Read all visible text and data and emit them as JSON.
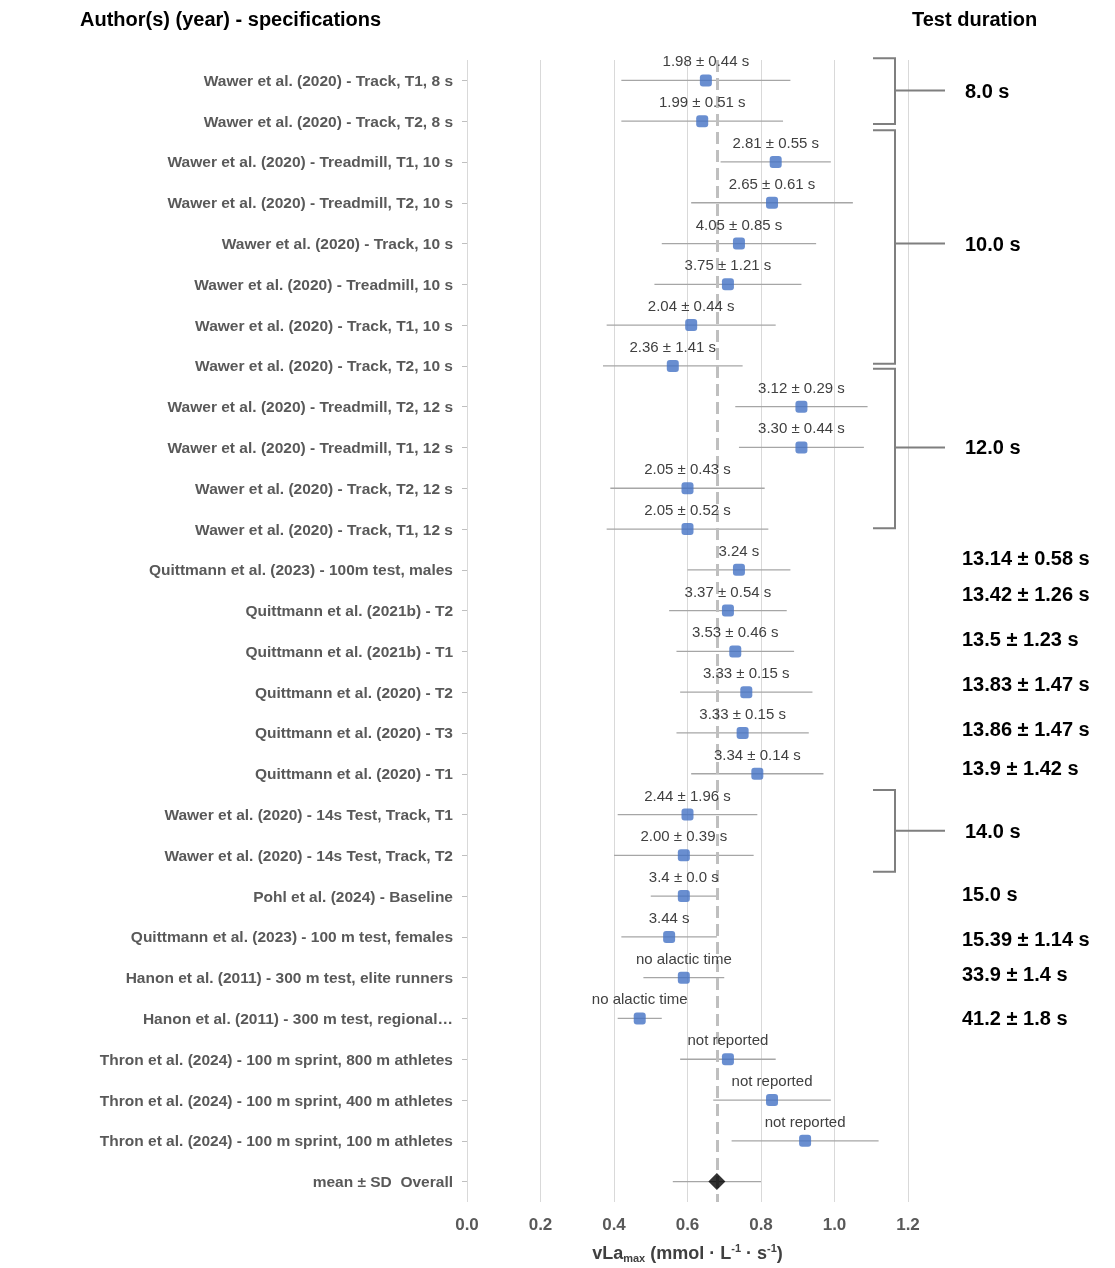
{
  "chart_data": {
    "type": "scatter",
    "orientation": "horizontal",
    "xlabel": "vLa$_{max}$ (mmol · L$^{-1}$ · s$^{-1}$)",
    "ylabel": "Author(s) (year) - specifications",
    "categories": [
      "Wawer et al. (2020) - Track, T1, 8 s",
      "Wawer et al. (2020) - Track, T2, 8 s",
      "Wawer et al. (2020) - Treadmill, T1, 10 s",
      "Wawer et al. (2020) - Treadmill, T2, 10 s",
      "Wawer et al. (2020) - Track, 10 s",
      "Wawer et al. (2020) - Treadmill, 10 s",
      "Wawer et al. (2020) - Track, T1, 10 s",
      "Wawer et al. (2020) - Track, T2, 10 s",
      "Wawer et al. (2020) - Treadmill, T2, 12 s",
      "Wawer et al. (2020) - Treadmill, T1, 12 s",
      "Wawer et al. (2020) - Track, T2, 12 s",
      "Wawer et al. (2020) - Track, T1, 12 s",
      "Quittmann et al. (2023) - 100m test, males",
      "Quittmann et al. (2021b) - T2",
      "Quittmann et al. (2021b) - T1",
      "Quittmann et al. (2020) - T2",
      "Quittmann et al. (2020) - T3",
      "Quittmann et al. (2020) - T1",
      "Wawer et al. (2020) - 14s Test, Track, T1",
      "Wawer et al. (2020) - 14s Test, Track, T2",
      "Pohl et al. (2024) - Baseline",
      "Quittmann et al. (2023) - 100 m test, females",
      "Hanon et al. (2011) - 300 m test, elite runners",
      "Hanon et al. (2011) - 300 m test, regional…",
      "Thron et al. (2024) - 100 m sprint, 800 m athletes",
      "Thron et al. (2024) - 100 m sprint, 400 m athletes",
      "Thron et al. (2024) - 100 m sprint, 100 m athletes",
      "mean ± SD  Overall"
    ],
    "series": [
      {
        "color": "#4472c4",
        "marker": "square",
        "values": [
          0.65,
          0.64,
          0.84,
          0.83,
          0.74,
          0.71,
          0.61,
          0.56,
          0.91,
          0.91,
          0.6,
          0.6,
          0.74,
          0.71,
          0.73,
          0.76,
          0.75,
          0.79,
          0.6,
          0.59,
          0.59,
          0.55,
          0.59,
          0.47,
          0.71,
          0.83,
          0.92,
          null
        ],
        "errors": [
          0.23,
          0.22,
          0.15,
          0.22,
          0.21,
          0.2,
          0.23,
          0.19,
          0.18,
          0.17,
          0.21,
          0.22,
          0.14,
          0.16,
          0.16,
          0.18,
          0.18,
          0.18,
          0.19,
          0.19,
          0.09,
          0.13,
          0.11,
          0.06,
          0.13,
          0.16,
          0.2,
          null
        ]
      },
      {
        "color": "#000000",
        "marker": "diamond",
        "values": [
          null,
          null,
          null,
          null,
          null,
          null,
          null,
          null,
          null,
          null,
          null,
          null,
          null,
          null,
          null,
          null,
          null,
          null,
          null,
          null,
          null,
          null,
          null,
          null,
          null,
          null,
          null,
          0.68
        ],
        "errors": [
          null,
          null,
          null,
          null,
          null,
          null,
          null,
          null,
          null,
          null,
          null,
          null,
          null,
          null,
          null,
          null,
          null,
          null,
          null,
          null,
          null,
          null,
          null,
          null,
          null,
          null,
          null,
          0.12
        ]
      }
    ],
    "xlim": [
      0,
      1.2
    ],
    "xticks": [
      {
        "value": 0,
        "label": "0.0"
      },
      0.2,
      0.4,
      0.6,
      0.8,
      {
        "value": 1,
        "label": "1.0"
      },
      1.2
    ],
    "grid": "x",
    "ref_lines": [
      {
        "axis": "x",
        "value": 0.68,
        "color": "#bfbfbf",
        "line_style": "dashed"
      }
    ],
    "annotations": [
      "Test duration",
      "8.0 s",
      "10.0 s",
      "12.0 s",
      "13.14 ± 0.58 s",
      "13.42 ± 1.26 s",
      "13.5 ± 1.23 s",
      "13.83 ± 1.47 s",
      "13.86 ± 1.47 s",
      "13.9 ± 1.42 s",
      "14.0 s",
      "15.0 s",
      "15.39 ± 1.14 s",
      "33.9 ± 1.4 s",
      "41.2 ± 1.8 s",
      {
        "text": "1.98 ± 0.44 s",
        "x": 0.65,
        "y": "Wawer et al. (2020) - Track, T1, 8 s"
      },
      {
        "text": "1.99 ± 0.51 s",
        "x": 0.64,
        "y": "Wawer et al. (2020) - Track, T2, 8 s"
      },
      {
        "text": "2.81 ± 0.55 s",
        "x": 0.84,
        "y": "Wawer et al. (2020) - Treadmill, T1, 10 s"
      },
      {
        "text": "2.65 ± 0.61 s",
        "x": 0.83,
        "y": "Wawer et al. (2020) - Treadmill, T2, 10 s"
      },
      {
        "text": "4.05 ± 0.85 s",
        "x": 0.74,
        "y": "Wawer et al. (2020) - Track, 10 s"
      },
      {
        "text": "3.75 ± 1.21 s",
        "x": 0.71,
        "y": "Wawer et al. (2020) - Treadmill, 10 s"
      },
      {
        "text": "2.04 ± 0.44 s",
        "x": 0.61,
        "y": "Wawer et al. (2020) - Track, T1, 10 s"
      },
      {
        "text": "2.36 ± 1.41 s",
        "x": 0.56,
        "y": "Wawer et al. (2020) - Track, T2, 10 s"
      },
      {
        "text": "3.12 ± 0.29 s",
        "x": 0.91,
        "y": "Wawer et al. (2020) - Treadmill, T2, 12 s"
      },
      {
        "text": "3.30 ± 0.44 s",
        "x": 0.91,
        "y": "Wawer et al. (2020) - Treadmill, T1, 12 s"
      },
      {
        "text": "2.05 ± 0.43 s",
        "x": 0.6,
        "y": "Wawer et al. (2020) - Track, T2, 12 s"
      },
      {
        "text": "2.05 ± 0.52 s",
        "x": 0.6,
        "y": "Wawer et al. (2020) - Track, T1, 12 s"
      },
      {
        "text": "3.24 s",
        "x": 0.74,
        "y": "Quittmann et al. (2023) - 100m test, males"
      },
      {
        "text": "3.37 ± 0.54 s",
        "x": 0.71,
        "y": "Quittmann et al. (2021b) - T2"
      },
      {
        "text": "3.53 ± 0.46 s",
        "x": 0.73,
        "y": "Quittmann et al. (2021b) - T1"
      },
      {
        "text": "3.33 ± 0.15 s",
        "x": 0.76,
        "y": "Quittmann et al. (2020) - T2"
      },
      {
        "text": "3.33 ± 0.15 s",
        "x": 0.75,
        "y": "Quittmann et al. (2020) - T3"
      },
      {
        "text": "3.34 ± 0.14 s",
        "x": 0.79,
        "y": "Quittmann et al. (2020) - T1"
      },
      {
        "text": "2.44 ± 1.96 s",
        "x": 0.6,
        "y": "Wawer et al. (2020) - 14s Test, Track, T1"
      },
      {
        "text": "2.00 ± 0.39 s",
        "x": 0.59,
        "y": "Wawer et al. (2020) - 14s Test, Track, T2"
      },
      {
        "text": "3.4 ± 0.0 s",
        "x": 0.59,
        "y": "Pohl et al. (2024) - Baseline"
      },
      {
        "text": "3.44 s",
        "x": 0.55,
        "y": "Quittmann et al. (2023) - 100 m test, females"
      },
      {
        "text": "no alactic time",
        "x": 0.59,
        "y": "Hanon et al. (2011) - 300 m test, elite runners"
      },
      {
        "text": "no alactic time",
        "x": 0.47,
        "y": "Hanon et al. (2011) - 300 m test, regional…"
      },
      {
        "text": "not reported",
        "x": 0.71,
        "y": "Thron et al. (2024) - 100 m sprint, 800 m athletes"
      },
      {
        "text": "not reported",
        "x": 0.83,
        "y": "Thron et al. (2024) - 100 m sprint, 400 m athletes"
      },
      {
        "text": "not reported",
        "x": 0.92,
        "y": "Thron et al. (2024) - 100 m sprint, 100 m athletes"
      }
    ]
  }
}
